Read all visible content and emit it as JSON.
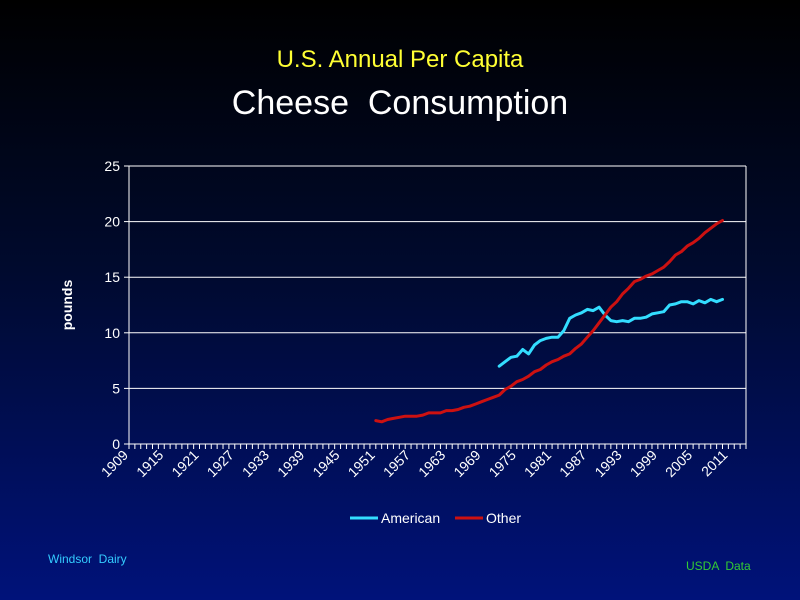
{
  "slide": {
    "subtitle": "U.S. Annual Per Capita",
    "title": "Cheese  Consumption",
    "footer_left": "Windsor  Dairy",
    "footer_right": "USDA  Data"
  },
  "colors": {
    "american": "#33ddff",
    "other": "#cc1111"
  },
  "chart_data": {
    "type": "line",
    "title": "Cheese  Consumption",
    "subtitle": "U.S. Annual Per Capita",
    "xlabel": "",
    "ylabel": "pounds",
    "xlim": [
      1909,
      2014
    ],
    "ylim": [
      0,
      25
    ],
    "y_ticks": [
      0,
      5,
      10,
      15,
      20,
      25
    ],
    "x_tick_labels": [
      "1909",
      "1915",
      "1921",
      "1927",
      "1933",
      "1939",
      "1945",
      "1951",
      "1957",
      "1963",
      "1969",
      "1975",
      "1981",
      "1987",
      "1993",
      "1999",
      "2005",
      "2011"
    ],
    "grid": true,
    "legend_position": "bottom",
    "series": [
      {
        "name": "American",
        "x": [
          1972,
          1973,
          1974,
          1975,
          1976,
          1977,
          1978,
          1979,
          1980,
          1981,
          1982,
          1983,
          1984,
          1985,
          1986,
          1987,
          1988,
          1989,
          1990,
          1991,
          1992,
          1993,
          1994,
          1995,
          1996,
          1997,
          1998,
          1999,
          2000,
          2001,
          2002,
          2003,
          2004,
          2005,
          2006,
          2007,
          2008,
          2009,
          2010
        ],
        "y": [
          7.0,
          7.4,
          7.8,
          7.9,
          8.5,
          8.1,
          8.9,
          9.3,
          9.5,
          9.6,
          9.6,
          10.2,
          11.3,
          11.6,
          11.8,
          12.1,
          12.0,
          12.3,
          11.6,
          11.1,
          11.0,
          11.1,
          11.0,
          11.3,
          11.3,
          11.4,
          11.7,
          11.8,
          11.9,
          12.5,
          12.6,
          12.8,
          12.8,
          12.6,
          12.9,
          12.7,
          13.0,
          12.8,
          13.0
        ]
      },
      {
        "name": "Other",
        "x": [
          1951,
          1952,
          1953,
          1954,
          1955,
          1956,
          1957,
          1958,
          1959,
          1960,
          1961,
          1962,
          1963,
          1964,
          1965,
          1966,
          1967,
          1968,
          1969,
          1970,
          1971,
          1972,
          1973,
          1974,
          1975,
          1976,
          1977,
          1978,
          1979,
          1980,
          1981,
          1982,
          1983,
          1984,
          1985,
          1986,
          1987,
          1988,
          1989,
          1990,
          1991,
          1992,
          1993,
          1994,
          1995,
          1996,
          1997,
          1998,
          1999,
          2000,
          2001,
          2002,
          2003,
          2004,
          2005,
          2006,
          2007,
          2008,
          2009,
          2010
        ],
        "y": [
          2.1,
          2.0,
          2.2,
          2.3,
          2.4,
          2.5,
          2.5,
          2.5,
          2.6,
          2.8,
          2.8,
          2.8,
          3.0,
          3.0,
          3.1,
          3.3,
          3.4,
          3.6,
          3.8,
          4.0,
          4.2,
          4.4,
          4.9,
          5.2,
          5.6,
          5.8,
          6.1,
          6.5,
          6.7,
          7.1,
          7.4,
          7.6,
          7.9,
          8.1,
          8.6,
          9.0,
          9.6,
          10.2,
          10.9,
          11.6,
          12.3,
          12.8,
          13.5,
          14.0,
          14.6,
          14.8,
          15.1,
          15.3,
          15.6,
          15.9,
          16.4,
          17.0,
          17.3,
          17.8,
          18.1,
          18.5,
          19.0,
          19.4,
          19.8,
          20.1
        ]
      }
    ]
  }
}
